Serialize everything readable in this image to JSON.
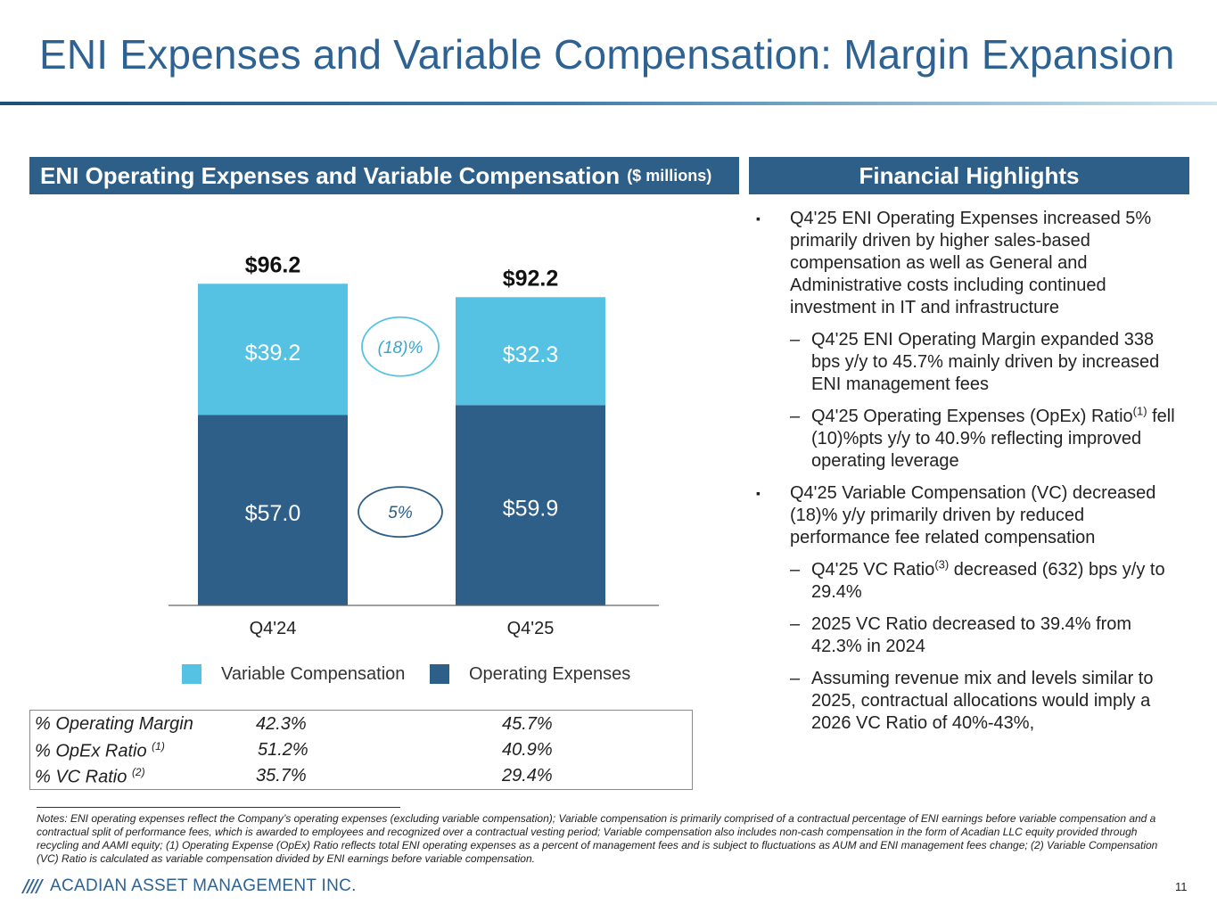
{
  "page": {
    "title": "ENI Expenses and Variable Compensation: Margin Expansion",
    "left_header": "ENI Operating Expenses and Variable Compensation",
    "left_header_unit": "($ millions)",
    "right_header": "Financial Highlights",
    "page_number": "11",
    "company": "ACADIAN ASSET MANAGEMENT INC."
  },
  "colors": {
    "title": "#2d6293",
    "header_bg": "#2d5f89",
    "vc": "#56c2e3",
    "opex": "#2d5f89"
  },
  "chart_data": {
    "type": "bar",
    "stacked": true,
    "categories": [
      "Q4'24",
      "Q4'25"
    ],
    "series": [
      {
        "name": "Operating Expenses",
        "values": [
          57.0,
          59.9
        ],
        "labels": [
          "$57.0",
          "$59.9"
        ]
      },
      {
        "name": "Variable Compensation",
        "values": [
          39.2,
          32.3
        ],
        "labels": [
          "$39.2",
          "$32.3"
        ]
      }
    ],
    "totals": [
      96.2,
      92.2
    ],
    "total_labels": [
      "$96.2",
      "$92.2"
    ],
    "annotations": {
      "vc_change": "(18)%",
      "opex_change": "5%"
    },
    "ylim": [
      0,
      100
    ],
    "legend": [
      "Variable Compensation",
      "Operating Expenses"
    ]
  },
  "ratios": {
    "rows": [
      {
        "label": "% Operating Margin",
        "sup": "",
        "q4_24": "42.3%",
        "q4_25": "45.7%"
      },
      {
        "label": "% OpEx Ratio",
        "sup": "(1)",
        "q4_24": "51.2%",
        "q4_25": "40.9%"
      },
      {
        "label": "% VC Ratio",
        "sup": "(2)",
        "q4_24": "35.7%",
        "q4_25": "29.4%"
      }
    ]
  },
  "highlights": {
    "b1": "Q4'25 ENI Operating Expenses increased 5% primarily driven by higher sales-based compensation as well as General and Administrative costs including continued investment in IT and infrastructure",
    "b1_s1": "Q4'25 ENI Operating Margin expanded 338 bps y/y to 45.7% mainly driven by increased ENI management fees",
    "b1_s2_pre": "Q4'25 Operating Expenses (OpEx) Ratio",
    "b1_s2_sup": "(1)",
    "b1_s2_post": " fell (10)%pts y/y to 40.9% reflecting improved operating leverage",
    "b2": "Q4'25 Variable Compensation (VC) decreased (18)% y/y primarily driven by reduced performance fee related compensation",
    "b2_s1_pre": "Q4'25 VC Ratio",
    "b2_s1_sup": "(3)",
    "b2_s1_post": " decreased (632) bps y/y to 29.4%",
    "b2_s2": "2025 VC Ratio decreased to 39.4% from 42.3% in 2024",
    "b2_s3": "Assuming revenue mix and levels similar to 2025, contractual allocations would imply a 2026 VC Ratio of 40%-43%,"
  },
  "notes": "Notes: ENI operating expenses reflect the Company’s operating expenses (excluding variable compensation); Variable compensation is primarily comprised of a contractual percentage of ENI earnings before variable compensation and a contractual split of performance fees, which is awarded to employees and recognized over a contractual vesting period; Variable compensation also includes non-cash compensation in the form of Acadian LLC equity provided through recycling and AAMI equity; (1) Operating Expense (OpEx) Ratio reflects total ENI operating expenses as a percent of management fees and is subject to fluctuations as AUM and ENI management fees change; (2) Variable Compensation (VC) Ratio is calculated as variable compensation divided by ENI earnings before variable compensation."
}
